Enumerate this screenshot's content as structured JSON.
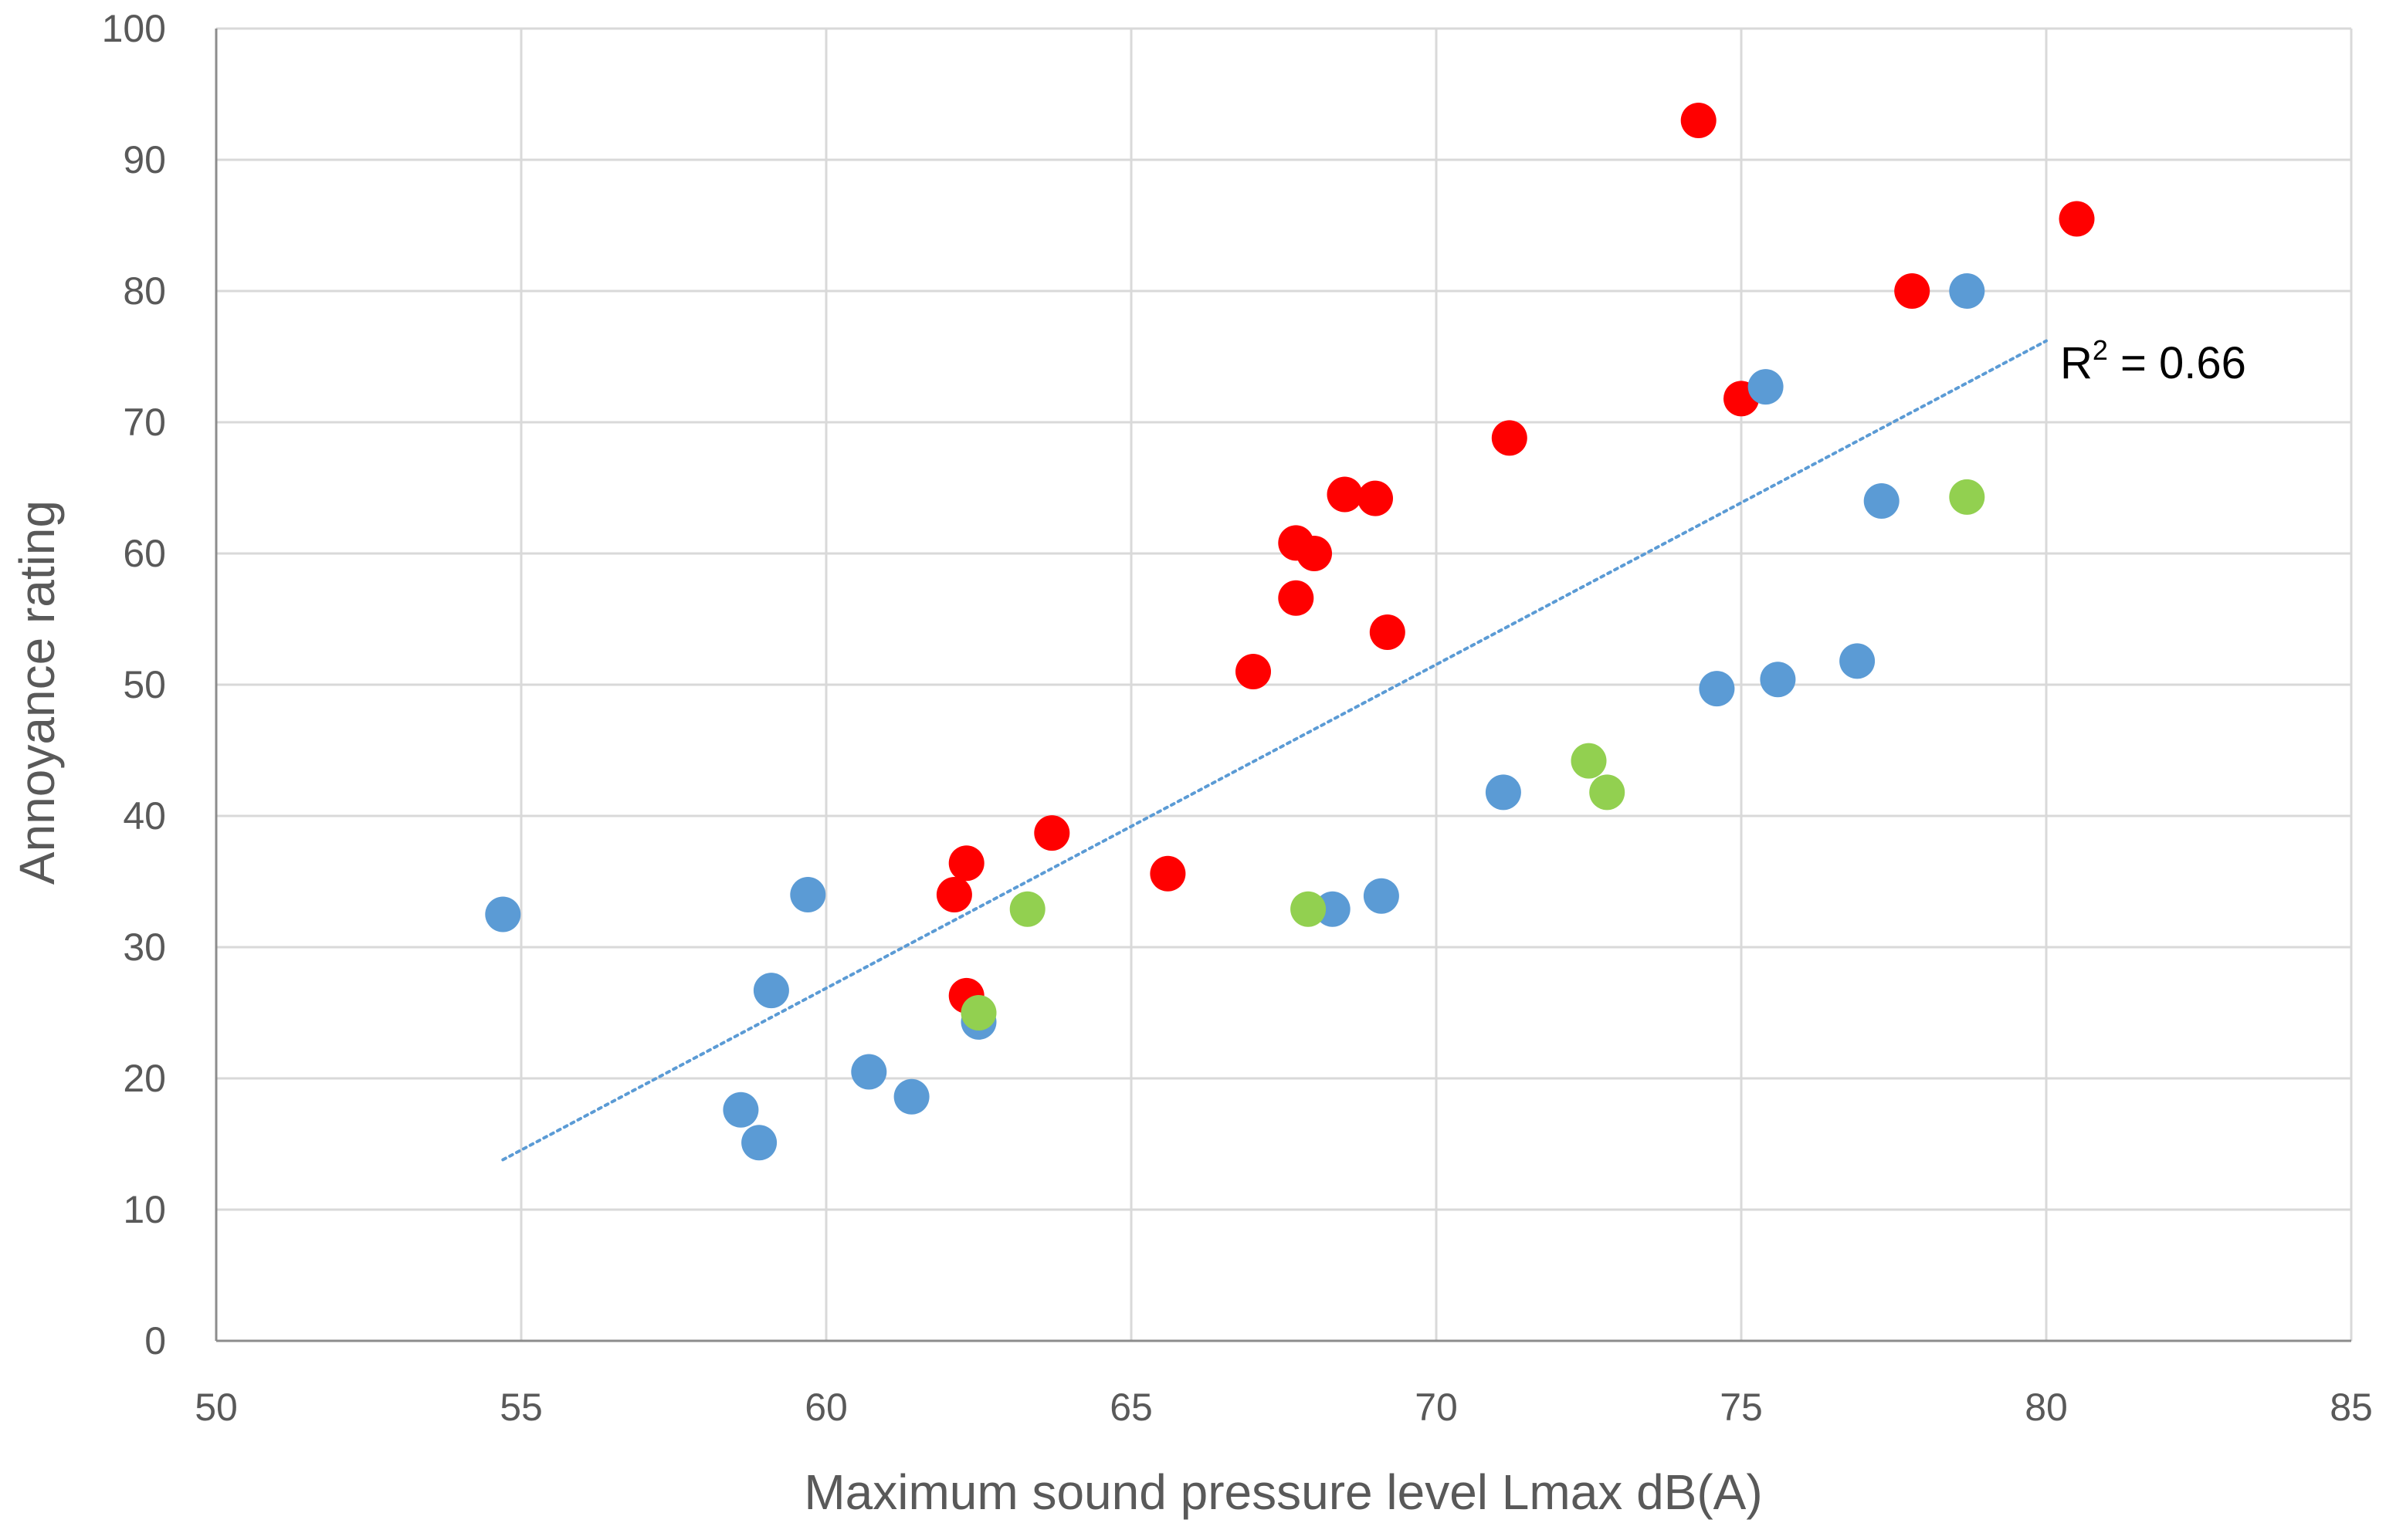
{
  "chart_data": {
    "type": "scatter",
    "title": "",
    "xlabel": "Maximum sound pressure level Lmax dB(A)",
    "ylabel": "Annoyance rating",
    "xlim": [
      50,
      85
    ],
    "ylim": [
      0,
      100
    ],
    "x_ticks": [
      "50",
      "55",
      "60",
      "65",
      "70",
      "75",
      "80",
      "85"
    ],
    "y_ticks": [
      "0",
      "10",
      "20",
      "30",
      "40",
      "50",
      "60",
      "70",
      "80",
      "90",
      "100"
    ],
    "grid": true,
    "legend": "none",
    "series": [
      {
        "name": "red",
        "color": "#ff0000",
        "points": [
          [
            74.3,
            93
          ],
          [
            80.5,
            85.5
          ],
          [
            77.8,
            80
          ],
          [
            75.0,
            71.8
          ],
          [
            71.2,
            68.8
          ],
          [
            68.5,
            64.5
          ],
          [
            69.0,
            64.2
          ],
          [
            67.7,
            60.8
          ],
          [
            68.0,
            60.0
          ],
          [
            67.7,
            56.6
          ],
          [
            69.2,
            54.0
          ],
          [
            67.0,
            51.0
          ],
          [
            63.7,
            38.7
          ],
          [
            62.3,
            36.4
          ],
          [
            62.1,
            34.0
          ],
          [
            65.6,
            35.6
          ],
          [
            62.3,
            26.3
          ]
        ]
      },
      {
        "name": "blue",
        "color": "#5b9bd5",
        "points": [
          [
            54.7,
            32.5
          ],
          [
            59.7,
            34.0
          ],
          [
            59.1,
            26.7
          ],
          [
            58.6,
            17.6
          ],
          [
            58.9,
            15.1
          ],
          [
            60.7,
            20.5
          ],
          [
            61.4,
            18.6
          ],
          [
            62.5,
            24.3
          ],
          [
            68.3,
            32.9
          ],
          [
            69.1,
            33.9
          ],
          [
            71.1,
            41.8
          ],
          [
            74.6,
            49.7
          ],
          [
            75.6,
            50.4
          ],
          [
            76.9,
            51.8
          ],
          [
            77.3,
            64.0
          ],
          [
            75.4,
            72.7
          ],
          [
            78.7,
            80.0
          ]
        ]
      },
      {
        "name": "green",
        "color": "#92d050",
        "points": [
          [
            62.5,
            25.0
          ],
          [
            63.3,
            32.9
          ],
          [
            67.9,
            32.9
          ],
          [
            72.5,
            44.2
          ],
          [
            72.8,
            41.8
          ],
          [
            78.7,
            64.3
          ]
        ]
      }
    ],
    "trendline": {
      "type": "linear",
      "color": "#5b9bd5",
      "x_start": 54.7,
      "y_start": 13.8,
      "x_end": 80.0,
      "y_end": 76.2
    },
    "annotations": [
      {
        "text_base": "R",
        "text_sup": "2",
        "text_rest": " = 0.66"
      }
    ]
  }
}
